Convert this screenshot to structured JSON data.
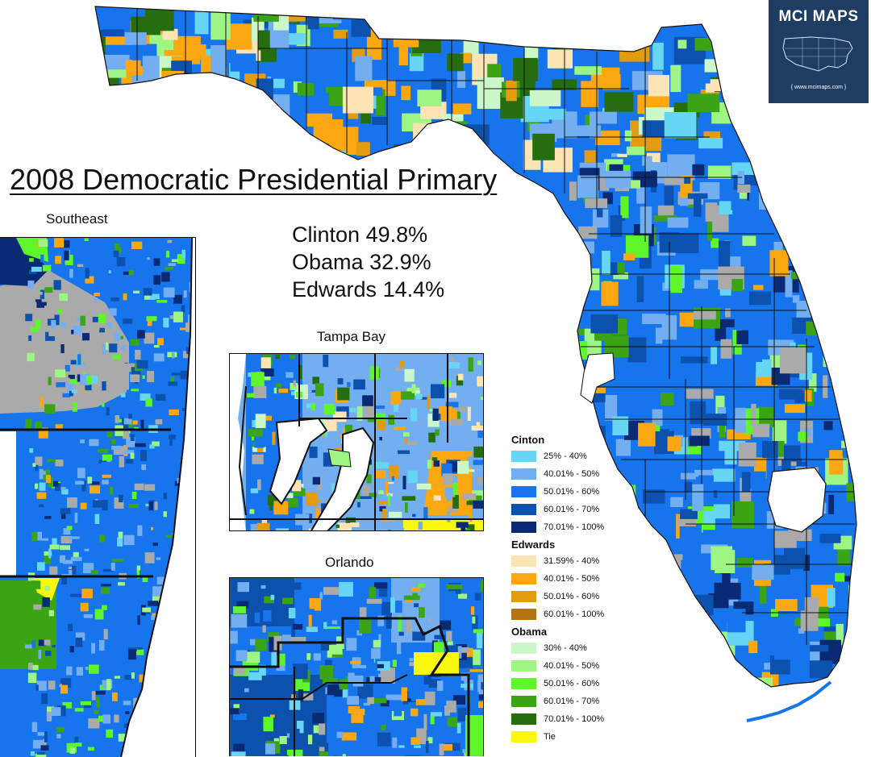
{
  "title": "2008 Democratic Presidential Primary",
  "results": [
    {
      "candidate": "Clinton",
      "pct": "49.8%"
    },
    {
      "candidate": "Obama",
      "pct": "32.9%"
    },
    {
      "candidate": "Edwards",
      "pct": "14.4%"
    }
  ],
  "insets": {
    "southeast": "Southeast",
    "tampa": "Tampa Bay",
    "orlando": "Orlando"
  },
  "badge": {
    "title": "MCI MAPS",
    "url": "{ www.mcimaps.com }"
  },
  "legend": {
    "clinton": {
      "header": "Cinton",
      "items": [
        {
          "label": "25% - 40%",
          "color": "#67d6f5"
        },
        {
          "label": "40.01% - 50%",
          "color": "#73aff0"
        },
        {
          "label": "50.01% - 60%",
          "color": "#1674ec"
        },
        {
          "label": "60.01% - 70%",
          "color": "#0c51ae"
        },
        {
          "label": "70.01% - 100%",
          "color": "#0a2a73"
        }
      ]
    },
    "edwards": {
      "header": "Edwards",
      "items": [
        {
          "label": "31.59% - 40%",
          "color": "#fce4b5"
        },
        {
          "label": "40.01% - 50%",
          "color": "#fba70f"
        },
        {
          "label": "50.01% - 60%",
          "color": "#e39b10"
        },
        {
          "label": "60.01% - 100%",
          "color": "#b27511"
        }
      ]
    },
    "obama": {
      "header": "Obama",
      "items": [
        {
          "label": "30% - 40%",
          "color": "#cbf7c9"
        },
        {
          "label": "40.01% - 50%",
          "color": "#9ff583"
        },
        {
          "label": "50.01% - 60%",
          "color": "#5ff52b"
        },
        {
          "label": "60.01% - 70%",
          "color": "#3ba414"
        },
        {
          "label": "70.01% - 100%",
          "color": "#266d10"
        },
        {
          "label": "Tie",
          "color": "#fbf90b"
        }
      ]
    }
  },
  "other_colors": {
    "no_data": "#aaaaaa",
    "county_line": "#111111"
  }
}
